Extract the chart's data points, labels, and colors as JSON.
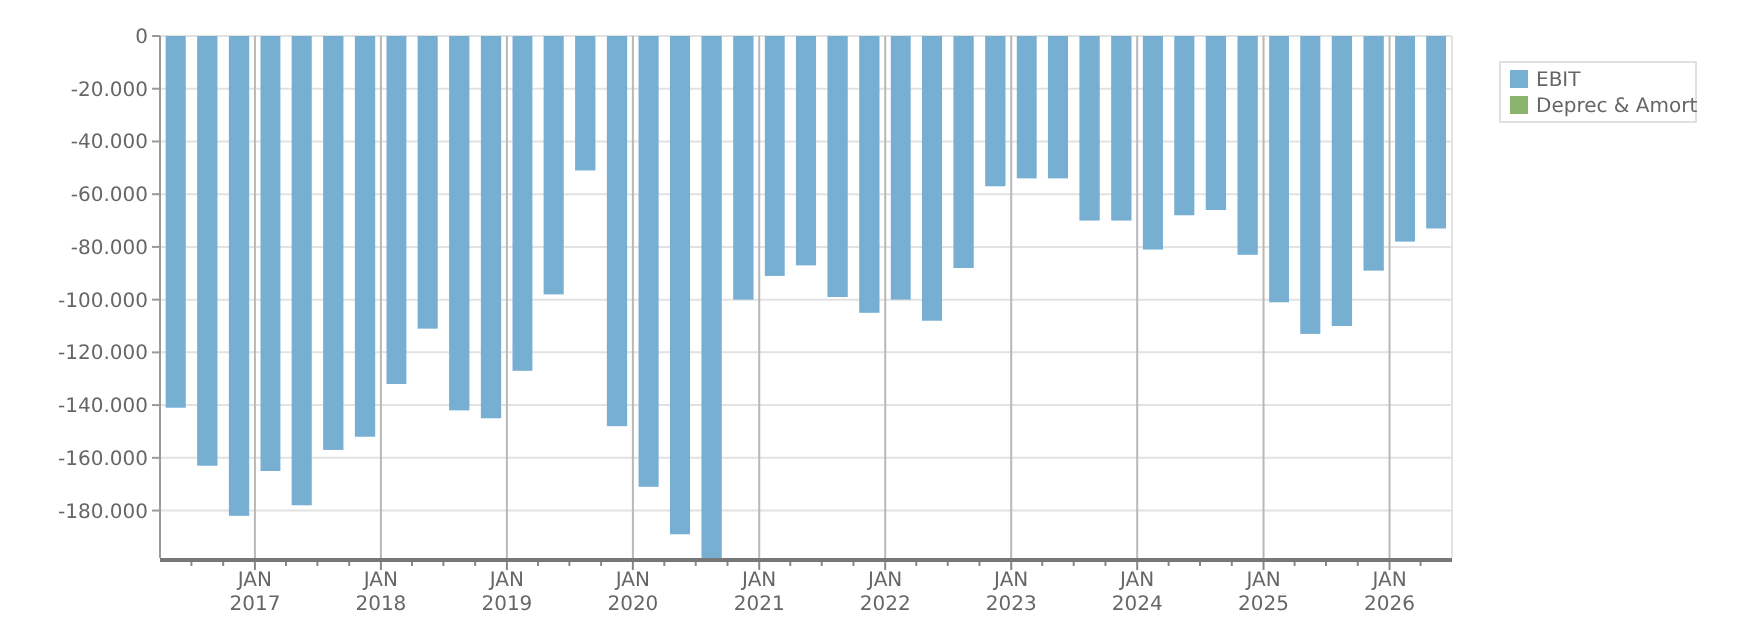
{
  "chart_data": {
    "type": "bar",
    "x": [
      "2016-04",
      "2016-07",
      "2016-10",
      "2017-01",
      "2017-04",
      "2017-07",
      "2017-10",
      "2018-01",
      "2018-04",
      "2018-07",
      "2018-10",
      "2019-01",
      "2019-04",
      "2019-07",
      "2019-10",
      "2020-01",
      "2020-04",
      "2020-07",
      "2020-10",
      "2021-01",
      "2021-04",
      "2021-07",
      "2021-10",
      "2022-01",
      "2022-04",
      "2022-07",
      "2022-10",
      "2023-01",
      "2023-04",
      "2023-07",
      "2023-10",
      "2024-01",
      "2024-04",
      "2024-07",
      "2024-10",
      "2025-01",
      "2025-04",
      "2025-07",
      "2025-10",
      "2026-01",
      "2026-04"
    ],
    "series": [
      {
        "name": "EBIT",
        "color": "#77afd2",
        "values": [
          -141000,
          -163000,
          -182000,
          -165000,
          -178000,
          -157000,
          -152000,
          -132000,
          -111000,
          -142000,
          -145000,
          -127000,
          -98000,
          -51000,
          -148000,
          -171000,
          -189000,
          -198000,
          -100000,
          -91000,
          -87000,
          -99000,
          -105000,
          -100000,
          -108000,
          -88000,
          -57000,
          -54000,
          -54000,
          -70000,
          -70000,
          -81000,
          -68000,
          -66000,
          -83000,
          -101000,
          -113000,
          -110000,
          -89000,
          -78000,
          -73000
        ]
      },
      {
        "name": "Deprec & Amort",
        "color": "#8ab46c",
        "values": [
          null,
          null,
          null,
          null,
          null,
          null,
          null,
          null,
          null,
          null,
          null,
          null,
          null,
          null,
          null,
          null,
          null,
          null,
          null,
          null,
          null,
          null,
          null,
          null,
          null,
          null,
          null,
          null,
          null,
          null,
          null,
          null,
          null,
          null,
          null,
          null,
          null,
          null,
          null,
          null,
          null
        ]
      }
    ],
    "xlim": [
      "2016-04",
      "2026-07"
    ],
    "xticks": [
      {
        "value": "2016-07",
        "label": null
      },
      {
        "value": "2016-10",
        "label": null
      },
      {
        "value": "2017-01",
        "label": "JAN 2017"
      },
      {
        "value": "2017-04",
        "label": null
      },
      {
        "value": "2017-07",
        "label": null
      },
      {
        "value": "2017-10",
        "label": null
      },
      {
        "value": "2018-01",
        "label": "JAN 2018"
      },
      {
        "value": "2018-04",
        "label": null
      },
      {
        "value": "2018-07",
        "label": null
      },
      {
        "value": "2018-10",
        "label": null
      },
      {
        "value": "2019-01",
        "label": "JAN 2019"
      },
      {
        "value": "2019-04",
        "label": null
      },
      {
        "value": "2019-07",
        "label": null
      },
      {
        "value": "2019-10",
        "label": null
      },
      {
        "value": "2020-01",
        "label": "JAN 2020"
      },
      {
        "value": "2020-04",
        "label": null
      },
      {
        "value": "2020-07",
        "label": null
      },
      {
        "value": "2020-10",
        "label": null
      },
      {
        "value": "2021-01",
        "label": "JAN 2021"
      },
      {
        "value": "2021-04",
        "label": null
      },
      {
        "value": "2021-07",
        "label": null
      },
      {
        "value": "2021-10",
        "label": null
      },
      {
        "value": "2022-01",
        "label": "JAN 2022"
      },
      {
        "value": "2022-04",
        "label": null
      },
      {
        "value": "2022-07",
        "label": null
      },
      {
        "value": "2022-10",
        "label": null
      },
      {
        "value": "2023-01",
        "label": "JAN 2023"
      },
      {
        "value": "2023-04",
        "label": null
      },
      {
        "value": "2023-07",
        "label": null
      },
      {
        "value": "2023-10",
        "label": null
      },
      {
        "value": "2024-01",
        "label": "JAN 2024"
      },
      {
        "value": "2024-04",
        "label": null
      },
      {
        "value": "2024-07",
        "label": null
      },
      {
        "value": "2024-10",
        "label": null
      },
      {
        "value": "2025-01",
        "label": "JAN 2025"
      },
      {
        "value": "2025-04",
        "label": null
      },
      {
        "value": "2025-07",
        "label": null
      },
      {
        "value": "2025-10",
        "label": null
      },
      {
        "value": "2026-01",
        "label": "JAN 2026"
      },
      {
        "value": "2026-04",
        "label": null
      }
    ],
    "ylim": [
      -198000,
      0
    ],
    "yticks": [
      {
        "value": 0,
        "label": "0"
      },
      {
        "value": -20000,
        "label": "-20.000"
      },
      {
        "value": -40000,
        "label": "-40.000"
      },
      {
        "value": -60000,
        "label": "-60.000"
      },
      {
        "value": -80000,
        "label": "-80.000"
      },
      {
        "value": -100000,
        "label": "-100.000"
      },
      {
        "value": -120000,
        "label": "-120.000"
      },
      {
        "value": -140000,
        "label": "-140.000"
      },
      {
        "value": -160000,
        "label": "-160.000"
      },
      {
        "value": -180000,
        "label": "-180.000"
      }
    ],
    "grid": true,
    "legend": "top right"
  }
}
